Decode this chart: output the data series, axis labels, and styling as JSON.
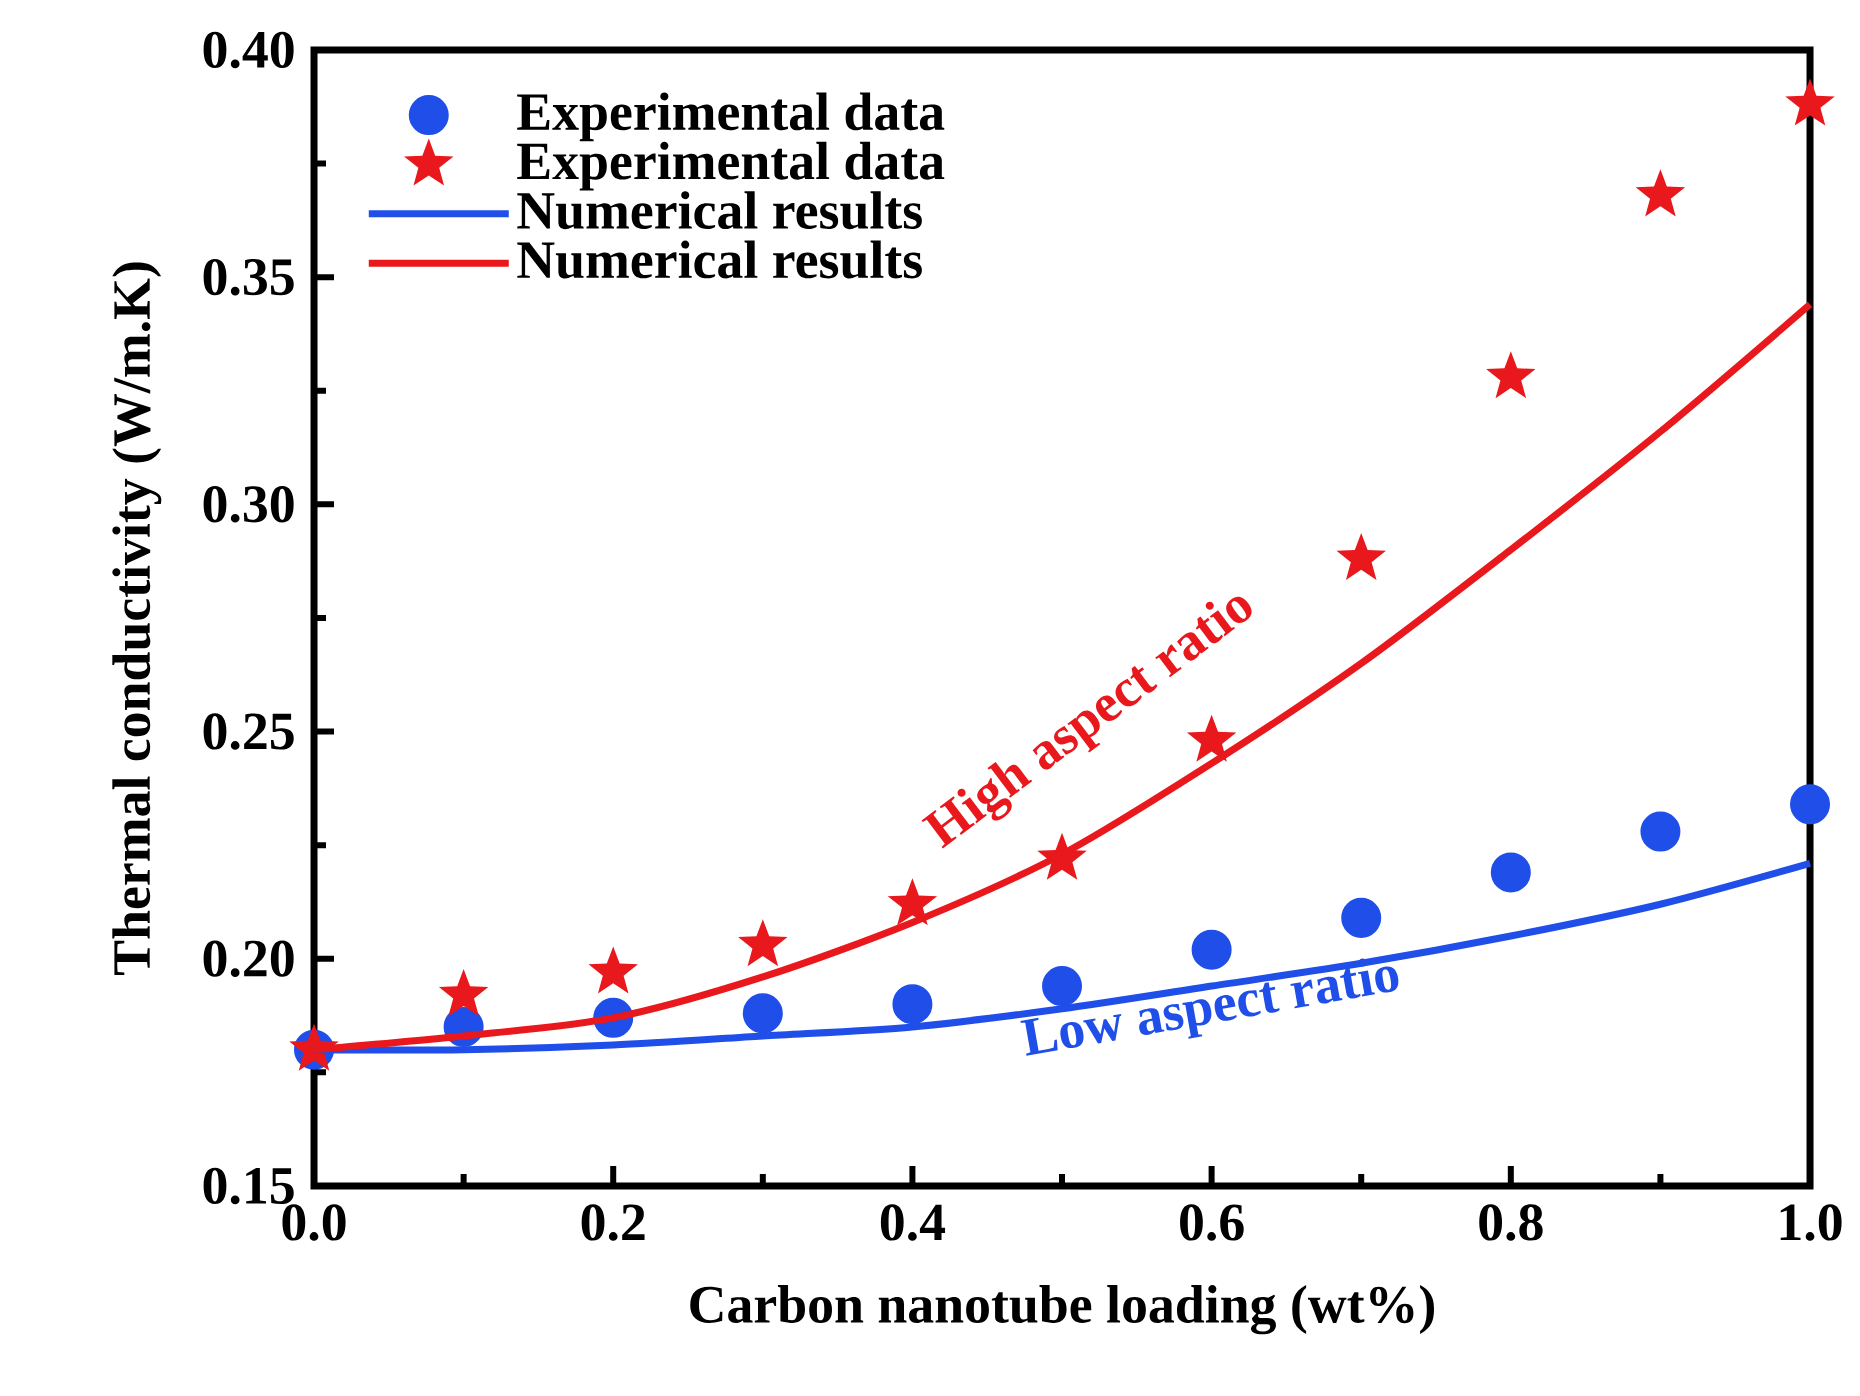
{
  "chart_data": {
    "type": "scatter",
    "xlabel": "Carbon nanotube loading (wt%)",
    "ylabel": "Thermal conductivity (W/m.K)",
    "xlim": [
      0.0,
      1.0
    ],
    "ylim": [
      0.15,
      0.4
    ],
    "xticks": [
      {
        "value": 0.0,
        "label": "0.0"
      },
      0.2,
      0.4,
      0.6,
      0.8,
      {
        "value": 1.0,
        "label": "1.0"
      }
    ],
    "yticks": [
      0.15,
      {
        "value": 0.2,
        "label": "0.20"
      },
      0.25,
      {
        "value": 0.3,
        "label": "0.30"
      },
      0.35,
      {
        "value": 0.4,
        "label": "0.40"
      }
    ],
    "legend": "top left",
    "grid": false,
    "series": [
      {
        "name": "Experimental data",
        "marker": "circle",
        "color": "#1f4ee8",
        "x": [
          0.0,
          0.1,
          0.2,
          0.3,
          0.4,
          0.5,
          0.6,
          0.7,
          0.8,
          0.9,
          1.0
        ],
        "values": [
          0.18,
          0.185,
          0.187,
          0.188,
          0.19,
          0.194,
          0.202,
          0.209,
          0.219,
          0.228,
          0.234
        ]
      },
      {
        "name": "Experimental data",
        "marker": "star",
        "color": "#e8181c",
        "x": [
          0.0,
          0.1,
          0.2,
          0.3,
          0.4,
          0.5,
          0.6,
          0.7,
          0.8,
          0.9,
          1.0
        ],
        "values": [
          0.18,
          0.192,
          0.197,
          0.203,
          0.212,
          0.222,
          0.248,
          0.288,
          0.328,
          0.368,
          0.388
        ]
      },
      {
        "name": "Numerical results",
        "type": "line",
        "marker": "none",
        "line_style": "solid",
        "color": "#1f4ee8",
        "x": [
          0.0,
          0.1,
          0.2,
          0.3,
          0.4,
          0.5,
          0.6,
          0.7,
          0.8,
          0.9,
          1.0
        ],
        "values": [
          0.18,
          0.18,
          0.181,
          0.183,
          0.185,
          0.189,
          0.194,
          0.199,
          0.205,
          0.212,
          0.221
        ]
      },
      {
        "name": "Numerical results",
        "type": "line",
        "marker": "none",
        "line_style": "solid",
        "color": "#e8181c",
        "x": [
          0.0,
          0.1,
          0.2,
          0.3,
          0.4,
          0.5,
          0.6,
          0.7,
          0.8,
          0.9,
          1.0
        ],
        "values": [
          0.18,
          0.183,
          0.187,
          0.196,
          0.208,
          0.223,
          0.243,
          0.265,
          0.29,
          0.316,
          0.344
        ]
      }
    ],
    "annotations": [
      "High aspect ratio",
      "Low aspect ratio"
    ]
  }
}
